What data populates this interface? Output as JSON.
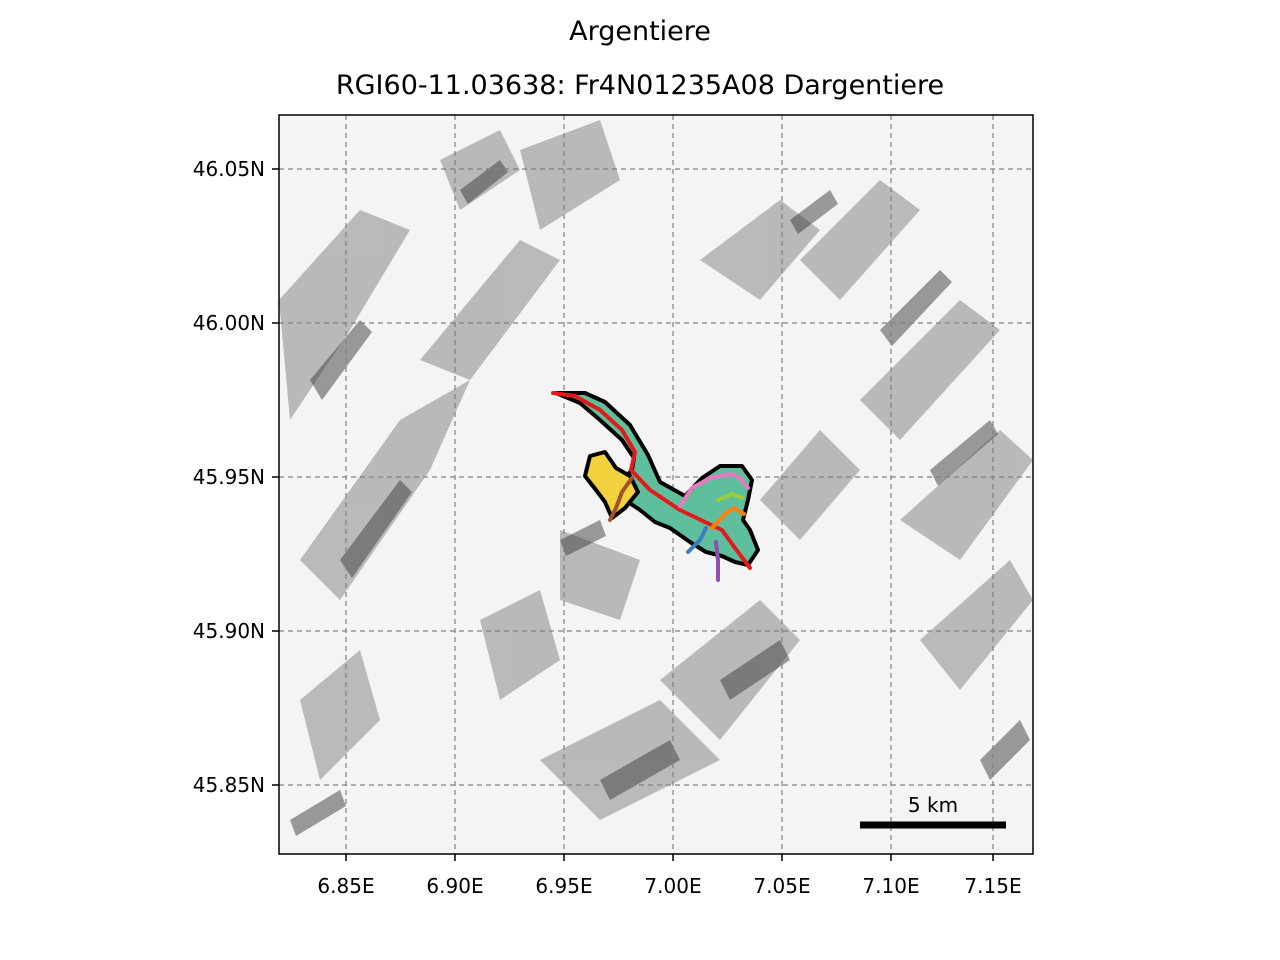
{
  "title": "Argentiere",
  "subtitle": "RGI60-11.03638: Fr4N01235A08 Dargentiere",
  "x_ticks": [
    "6.85E",
    "6.90E",
    "6.95E",
    "7.00E",
    "7.05E",
    "7.10E",
    "7.15E"
  ],
  "y_ticks": [
    "46.05N",
    "46.00N",
    "45.95N",
    "45.90N",
    "45.85N"
  ],
  "scale_bar": {
    "label": "5 km"
  },
  "colors": {
    "glacier_fill": "#5fbf9c",
    "outline": "#000000",
    "main_flowline": "#e31a1c",
    "tributary_yellow": "#f2d23c",
    "tributary_brown": "#a0522d",
    "tributary_pink": "#e879c0",
    "tributary_orange": "#ff7f0e",
    "tributary_blue": "#3a7dc0",
    "tributary_purple": "#8e4fb0",
    "tributary_green": "#9acd3c"
  }
}
